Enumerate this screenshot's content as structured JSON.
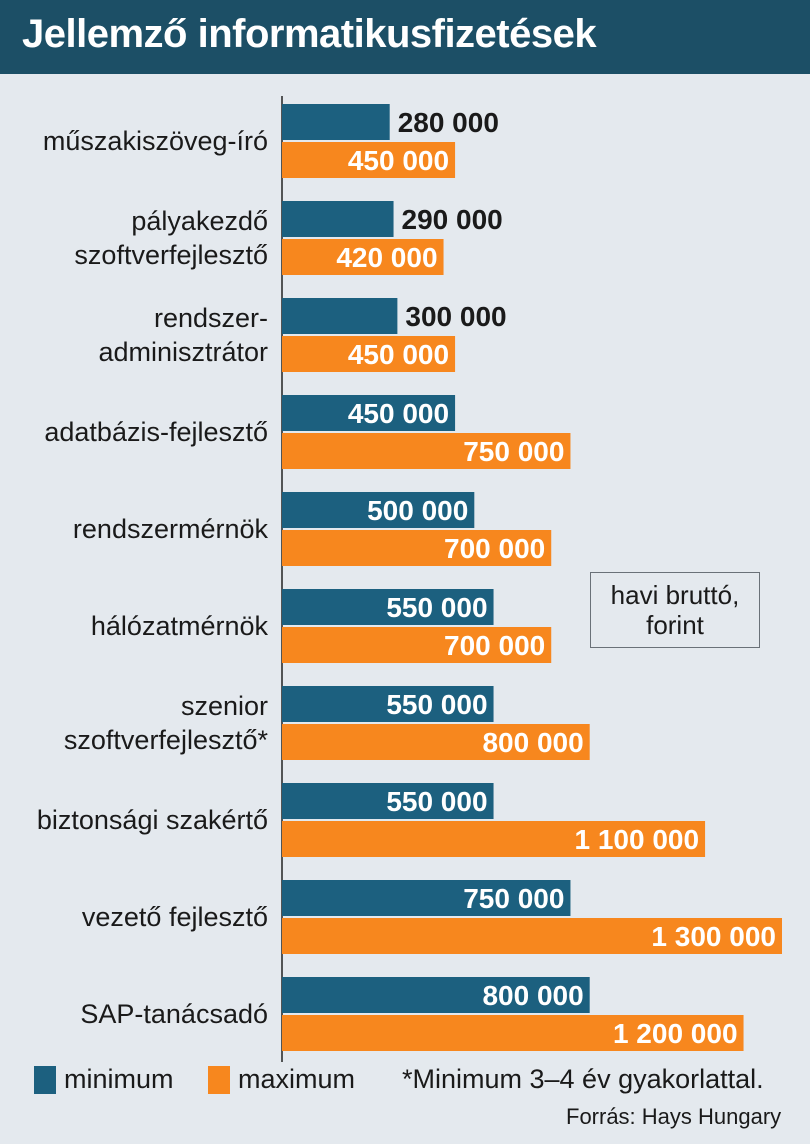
{
  "colors": {
    "minimum": "#1c607f",
    "maximum": "#f7871e",
    "header": "#1c4f66",
    "background": "#e4e9ee"
  },
  "header": {
    "title": "Jellemző informatikusfizetések"
  },
  "unit_note": {
    "line1": "havi bruttó,",
    "line2": "forint"
  },
  "legend": {
    "minimum": "minimum",
    "maximum": "maximum"
  },
  "footnote": "*Minimum 3–4 év gyakorlattal.",
  "source": "Forrás: Hays Hungary",
  "chart_data": {
    "type": "bar",
    "orientation": "horizontal",
    "title": "Jellemző informatikusfizetések",
    "categories": [
      [
        "műszakiszöveg-író"
      ],
      [
        "pályakezdő",
        "szoftverfejlesztő"
      ],
      [
        "rendszer-",
        "adminisztrátor"
      ],
      [
        "adatbázis-fejlesztő"
      ],
      [
        "rendszermérnök"
      ],
      [
        "hálózatmérnök"
      ],
      [
        "szenior",
        "szoftverfejlesztő*"
      ],
      [
        "biztonsági szakértő"
      ],
      [
        "vezető fejlesztő"
      ],
      [
        "SAP-tanácsadó"
      ]
    ],
    "series": [
      {
        "name": "minimum",
        "values": [
          280000,
          290000,
          300000,
          450000,
          500000,
          550000,
          550000,
          550000,
          750000,
          800000
        ],
        "labels": [
          "280 000",
          "290 000",
          "300 000",
          "450 000",
          "500 000",
          "550 000",
          "550 000",
          "550 000",
          "750 000",
          "800 000"
        ]
      },
      {
        "name": "maximum",
        "values": [
          450000,
          420000,
          450000,
          750000,
          700000,
          700000,
          800000,
          1100000,
          1300000,
          1200000
        ],
        "labels": [
          "450 000",
          "420 000",
          "450 000",
          "750 000",
          "700 000",
          "700 000",
          "800 000",
          "1 100 000",
          "1 300 000",
          "1 200 000"
        ]
      }
    ],
    "xlim": [
      0,
      1300000
    ],
    "grid": false,
    "legend_position": "bottom-left"
  }
}
